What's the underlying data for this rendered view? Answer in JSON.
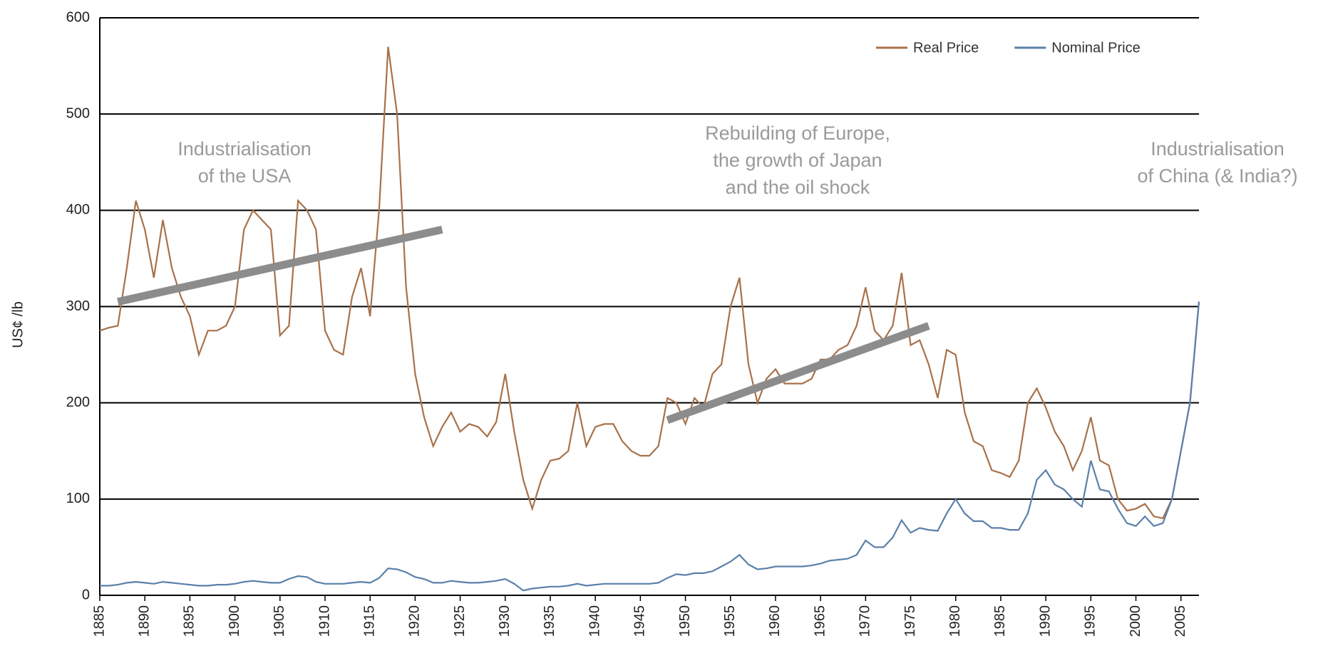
{
  "chart_data": {
    "type": "line",
    "y_axis_label": "US¢ /lb",
    "annotations": [
      [
        "Industrialisation",
        "of the USA"
      ],
      [
        "Rebuilding of Europe,",
        "the growth of Japan",
        "and the oil shock"
      ],
      [
        "Industrialisation",
        "of China (& India?)"
      ]
    ],
    "x": [
      1885,
      1886,
      1887,
      1888,
      1889,
      1890,
      1891,
      1892,
      1893,
      1894,
      1895,
      1896,
      1897,
      1898,
      1899,
      1900,
      1901,
      1902,
      1903,
      1904,
      1905,
      1906,
      1907,
      1908,
      1909,
      1910,
      1911,
      1912,
      1913,
      1914,
      1915,
      1916,
      1917,
      1918,
      1919,
      1920,
      1921,
      1922,
      1923,
      1924,
      1925,
      1926,
      1927,
      1928,
      1929,
      1930,
      1931,
      1932,
      1933,
      1934,
      1935,
      1936,
      1937,
      1938,
      1939,
      1940,
      1941,
      1942,
      1943,
      1944,
      1945,
      1946,
      1947,
      1948,
      1949,
      1950,
      1951,
      1952,
      1953,
      1954,
      1955,
      1956,
      1957,
      1958,
      1959,
      1960,
      1961,
      1962,
      1963,
      1964,
      1965,
      1966,
      1967,
      1968,
      1969,
      1970,
      1971,
      1972,
      1973,
      1974,
      1975,
      1976,
      1977,
      1978,
      1979,
      1980,
      1981,
      1982,
      1983,
      1984,
      1985,
      1986,
      1987,
      1988,
      1989,
      1990,
      1991,
      1992,
      1993,
      1994,
      1995,
      1996,
      1997,
      1998,
      1999,
      2000,
      2001,
      2002,
      2003,
      2004,
      2005,
      2006,
      2007
    ],
    "series": [
      {
        "name": "Real Price",
        "color": "#a8714a",
        "values": [
          275,
          278,
          280,
          340,
          410,
          380,
          330,
          390,
          340,
          310,
          290,
          250,
          275,
          275,
          280,
          300,
          380,
          400,
          390,
          380,
          270,
          280,
          410,
          400,
          380,
          275,
          255,
          250,
          310,
          340,
          290,
          400,
          570,
          500,
          320,
          230,
          185,
          155,
          175,
          190,
          170,
          178,
          175,
          165,
          180,
          230,
          170,
          120,
          90,
          120,
          140,
          142,
          150,
          200,
          155,
          175,
          178,
          178,
          160,
          150,
          145,
          145,
          155,
          205,
          200,
          178,
          205,
          195,
          230,
          240,
          300,
          330,
          240,
          200,
          225,
          235,
          220,
          220,
          220,
          225,
          245,
          245,
          255,
          260,
          280,
          320,
          275,
          265,
          280,
          335,
          260,
          265,
          240,
          205,
          255,
          250,
          190,
          160,
          155,
          130,
          127,
          123,
          140,
          200,
          215,
          195,
          170,
          155,
          130,
          150,
          185,
          140,
          135,
          100,
          88,
          90,
          95,
          82,
          80,
          100,
          150,
          200,
          305
        ]
      },
      {
        "name": "Nominal Price",
        "color": "#5b80aa",
        "values": [
          10,
          10,
          11,
          13,
          14,
          13,
          12,
          14,
          13,
          12,
          11,
          10,
          10,
          11,
          11,
          12,
          14,
          15,
          14,
          13,
          13,
          17,
          20,
          19,
          14,
          12,
          12,
          12,
          13,
          14,
          13,
          18,
          28,
          27,
          24,
          19,
          17,
          13,
          13,
          15,
          14,
          13,
          13,
          14,
          15,
          17,
          12,
          5,
          7,
          8,
          9,
          9,
          10,
          12,
          10,
          11,
          12,
          12,
          12,
          12,
          12,
          12,
          13,
          18,
          22,
          21,
          23,
          23,
          25,
          30,
          35,
          42,
          32,
          27,
          28,
          30,
          30,
          30,
          30,
          31,
          33,
          36,
          37,
          38,
          42,
          57,
          50,
          50,
          60,
          78,
          65,
          70,
          68,
          67,
          85,
          100,
          85,
          77,
          77,
          70,
          70,
          68,
          68,
          85,
          120,
          130,
          115,
          110,
          100,
          92,
          140,
          110,
          108,
          90,
          75,
          72,
          82,
          72,
          75,
          100,
          150,
          200,
          305
        ]
      }
    ],
    "trend_lines": [
      {
        "x": [
          1887,
          1923
        ],
        "y": [
          305,
          380
        ]
      },
      {
        "x": [
          1948,
          1977
        ],
        "y": [
          182,
          280
        ]
      }
    ],
    "trend_color": "#8c8c8c",
    "xlim": [
      1885,
      2007
    ],
    "xticks": [
      1885,
      1890,
      1895,
      1900,
      1905,
      1910,
      1915,
      1920,
      1925,
      1930,
      1935,
      1940,
      1945,
      1950,
      1955,
      1960,
      1965,
      1970,
      1975,
      1980,
      1985,
      1990,
      1995,
      2000,
      2005
    ],
    "ylim": [
      0,
      600
    ],
    "yticks": [
      0,
      100,
      200,
      300,
      400,
      500,
      600
    ],
    "grid": true,
    "legend": "top-right"
  }
}
